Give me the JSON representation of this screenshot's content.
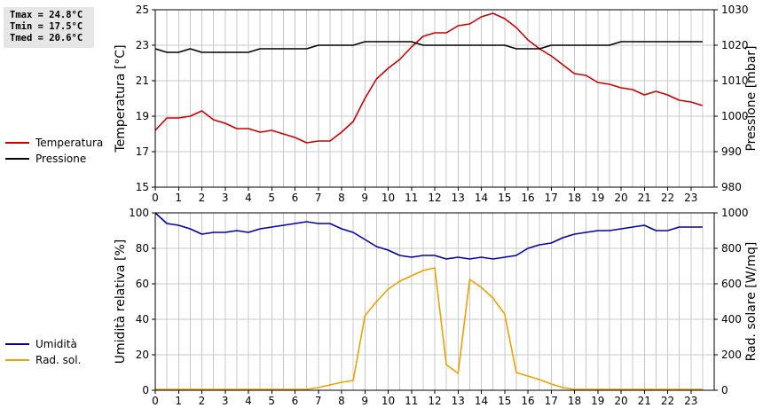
{
  "stats": {
    "tmax": "Tmax = 24.8°C",
    "tmin": "Tmin = 17.5°C",
    "tmed": "Tmed = 20.6°C"
  },
  "colors": {
    "temperature": "#cc0000",
    "pressure": "#000000",
    "humidity": "#0000b0",
    "solar": "#f0a000",
    "grid": "#c8c8c8"
  },
  "chart_data": [
    {
      "type": "line",
      "xlim": [
        0,
        24
      ],
      "x_ticks": [
        "0",
        "1",
        "2",
        "3",
        "4",
        "5",
        "6",
        "7",
        "8",
        "9",
        "10",
        "11",
        "12",
        "13",
        "14",
        "15",
        "16",
        "17",
        "18",
        "19",
        "20",
        "21",
        "22",
        "23"
      ],
      "ylabel_left": "Temperatura [°C]",
      "ylim_left": [
        15,
        25
      ],
      "y_ticks_left": [
        "15",
        "17",
        "19",
        "21",
        "23",
        "25"
      ],
      "ylabel_right": "Pressione [mbar]",
      "ylim_right": [
        980,
        1030
      ],
      "y_ticks_right": [
        "980",
        "990",
        "1000",
        "1010",
        "1020",
        "1030"
      ],
      "grid": true,
      "series": [
        {
          "name": "Temperatura",
          "axis": "left",
          "color": "#cc0000",
          "points": [
            [
              0,
              18.2
            ],
            [
              0.5,
              18.9
            ],
            [
              1,
              18.9
            ],
            [
              1.5,
              19.0
            ],
            [
              2,
              19.3
            ],
            [
              2.5,
              18.8
            ],
            [
              3,
              18.6
            ],
            [
              3.5,
              18.3
            ],
            [
              4,
              18.3
            ],
            [
              4.5,
              18.1
            ],
            [
              5,
              18.2
            ],
            [
              5.5,
              18.0
            ],
            [
              6,
              17.8
            ],
            [
              6.5,
              17.5
            ],
            [
              7,
              17.6
            ],
            [
              7.5,
              17.6
            ],
            [
              8,
              18.1
            ],
            [
              8.5,
              18.7
            ],
            [
              9,
              20.0
            ],
            [
              9.5,
              21.1
            ],
            [
              10,
              21.7
            ],
            [
              10.5,
              22.2
            ],
            [
              11,
              22.9
            ],
            [
              11.5,
              23.5
            ],
            [
              12,
              23.7
            ],
            [
              12.5,
              23.7
            ],
            [
              13,
              24.1
            ],
            [
              13.5,
              24.2
            ],
            [
              14,
              24.6
            ],
            [
              14.5,
              24.8
            ],
            [
              15,
              24.5
            ],
            [
              15.5,
              24.0
            ],
            [
              16,
              23.3
            ],
            [
              16.5,
              22.8
            ],
            [
              17,
              22.4
            ],
            [
              17.5,
              21.9
            ],
            [
              18,
              21.4
            ],
            [
              18.5,
              21.3
            ],
            [
              19,
              20.9
            ],
            [
              19.5,
              20.8
            ],
            [
              20,
              20.6
            ],
            [
              20.5,
              20.5
            ],
            [
              21,
              20.2
            ],
            [
              21.5,
              20.4
            ],
            [
              22,
              20.2
            ],
            [
              22.5,
              19.9
            ],
            [
              23,
              19.8
            ],
            [
              23.5,
              19.6
            ]
          ]
        },
        {
          "name": "Pressione",
          "axis": "right",
          "color": "#000000",
          "points": [
            [
              0,
              1019
            ],
            [
              0.5,
              1018
            ],
            [
              1,
              1018
            ],
            [
              1.5,
              1019
            ],
            [
              2,
              1018
            ],
            [
              3,
              1018
            ],
            [
              4,
              1018
            ],
            [
              4.5,
              1019
            ],
            [
              6,
              1019
            ],
            [
              6.5,
              1019
            ],
            [
              7,
              1020
            ],
            [
              8,
              1020
            ],
            [
              8.5,
              1020
            ],
            [
              9,
              1021
            ],
            [
              10,
              1021
            ],
            [
              11,
              1021
            ],
            [
              11.5,
              1020
            ],
            [
              12,
              1020
            ],
            [
              15,
              1020
            ],
            [
              15.5,
              1019
            ],
            [
              16,
              1019
            ],
            [
              16.5,
              1019
            ],
            [
              17,
              1020
            ],
            [
              18,
              1020
            ],
            [
              19.5,
              1020
            ],
            [
              20,
              1021
            ],
            [
              21,
              1021
            ],
            [
              23.5,
              1021
            ]
          ]
        }
      ]
    },
    {
      "type": "line",
      "xlim": [
        0,
        24
      ],
      "x_ticks": [
        "0",
        "1",
        "2",
        "3",
        "4",
        "5",
        "6",
        "7",
        "8",
        "9",
        "10",
        "11",
        "12",
        "13",
        "14",
        "15",
        "16",
        "17",
        "18",
        "19",
        "20",
        "21",
        "22",
        "23"
      ],
      "ylabel_left": "Umidità relativa [%]",
      "ylim_left": [
        0,
        100
      ],
      "y_ticks_left": [
        "0",
        "20",
        "40",
        "60",
        "80",
        "100"
      ],
      "ylabel_right": "Rad. solare [W/mq]",
      "ylim_right": [
        0,
        1000
      ],
      "y_ticks_right": [
        "0",
        "200",
        "400",
        "600",
        "800",
        "1000"
      ],
      "grid": true,
      "series": [
        {
          "name": "Umidità",
          "axis": "left",
          "color": "#0000b0",
          "points": [
            [
              0,
              100
            ],
            [
              0.5,
              94
            ],
            [
              1,
              93
            ],
            [
              1.5,
              91
            ],
            [
              2,
              88
            ],
            [
              2.5,
              89
            ],
            [
              3,
              89
            ],
            [
              3.5,
              90
            ],
            [
              4,
              89
            ],
            [
              4.5,
              91
            ],
            [
              5,
              92
            ],
            [
              5.5,
              93
            ],
            [
              6,
              94
            ],
            [
              6.5,
              95
            ],
            [
              7,
              94
            ],
            [
              7.5,
              94
            ],
            [
              8,
              91
            ],
            [
              8.5,
              89
            ],
            [
              9,
              85
            ],
            [
              9.5,
              81
            ],
            [
              10,
              79
            ],
            [
              10.5,
              76
            ],
            [
              11,
              75
            ],
            [
              11.5,
              76
            ],
            [
              12,
              76
            ],
            [
              12.5,
              74
            ],
            [
              13,
              75
            ],
            [
              13.5,
              74
            ],
            [
              14,
              75
            ],
            [
              14.5,
              74
            ],
            [
              15,
              75
            ],
            [
              15.5,
              76
            ],
            [
              16,
              80
            ],
            [
              16.5,
              82
            ],
            [
              17,
              83
            ],
            [
              17.5,
              86
            ],
            [
              18,
              88
            ],
            [
              18.5,
              89
            ],
            [
              19,
              90
            ],
            [
              19.5,
              90
            ],
            [
              20,
              91
            ],
            [
              20.5,
              92
            ],
            [
              21,
              93
            ],
            [
              21.5,
              90
            ],
            [
              22,
              90
            ],
            [
              22.5,
              92
            ],
            [
              23,
              92
            ],
            [
              23.5,
              92
            ]
          ]
        },
        {
          "name": "Rad. sol.",
          "axis": "right",
          "color": "#f0a000",
          "points": [
            [
              0,
              5
            ],
            [
              6.5,
              5
            ],
            [
              7,
              15
            ],
            [
              7.5,
              30
            ],
            [
              8,
              45
            ],
            [
              8.5,
              55
            ],
            [
              9,
              420
            ],
            [
              9.5,
              500
            ],
            [
              10,
              570
            ],
            [
              10.5,
              615
            ],
            [
              11,
              645
            ],
            [
              11.5,
              675
            ],
            [
              12,
              690
            ],
            [
              12.5,
              145
            ],
            [
              13,
              95
            ],
            [
              13.5,
              625
            ],
            [
              14,
              580
            ],
            [
              14.5,
              520
            ],
            [
              15,
              430
            ],
            [
              15.5,
              100
            ],
            [
              16,
              80
            ],
            [
              16.5,
              60
            ],
            [
              17,
              35
            ],
            [
              17.5,
              15
            ],
            [
              18,
              5
            ],
            [
              23.5,
              5
            ]
          ]
        }
      ]
    }
  ]
}
